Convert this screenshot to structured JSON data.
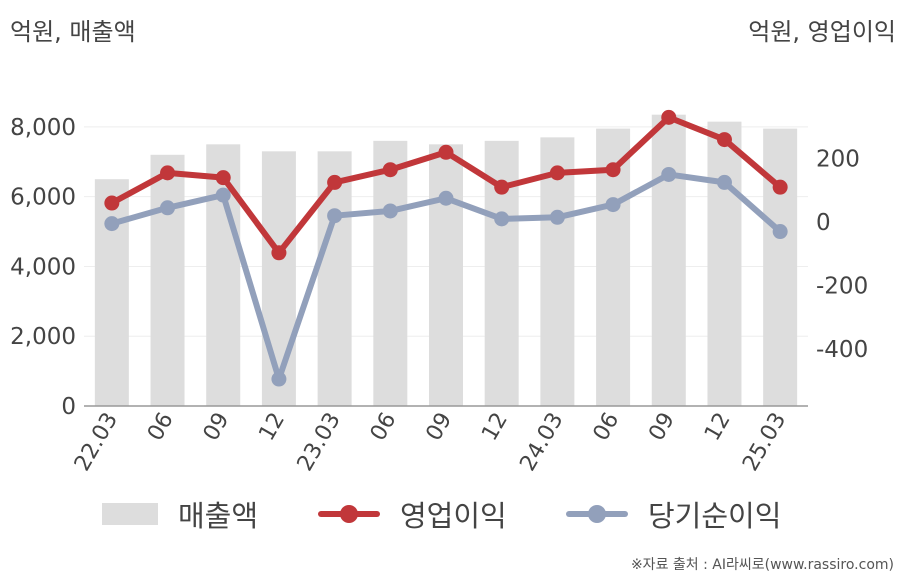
{
  "units": {
    "left": "억원, 매출액",
    "right": "억원, 영업이익"
  },
  "colors": {
    "bar": "#dddddd",
    "operating": "#c1373a",
    "net": "#92a0bb",
    "axis": "#999999",
    "grid": "#eeeeee"
  },
  "legend": {
    "revenue": "매출액",
    "operating": "영업이익",
    "net": "당기순이익"
  },
  "source": "※자료 출처 : AI라씨로(www.rassiro.com)",
  "chart_data": {
    "type": "bar+line",
    "categories": [
      "22.03",
      "06",
      "09",
      "12",
      "23.03",
      "06",
      "09",
      "12",
      "24.03",
      "06",
      "09",
      "12",
      "25.03"
    ],
    "left_axis": {
      "ylim": [
        0,
        9000
      ],
      "ticks": [
        0,
        2000,
        4000,
        6000,
        8000
      ],
      "tick_labels": [
        "0",
        "2,000",
        "4,000",
        "6,000",
        "8,000"
      ]
    },
    "right_axis": {
      "ylim": [
        -580,
        410
      ],
      "ticks": [
        -400,
        -200,
        0,
        200
      ],
      "tick_labels": [
        "-400",
        "-200",
        "0",
        "200"
      ]
    },
    "series": [
      {
        "name": "매출액",
        "type": "bar",
        "axis": "left",
        "values": [
          6500,
          7200,
          7500,
          7300,
          7300,
          7600,
          7500,
          7600,
          7700,
          7950,
          8350,
          8150,
          7950
        ]
      },
      {
        "name": "영업이익",
        "type": "line",
        "axis": "right",
        "values": [
          60,
          155,
          140,
          -97,
          125,
          165,
          220,
          110,
          155,
          165,
          330,
          260,
          110
        ]
      },
      {
        "name": "당기순이익",
        "type": "line",
        "axis": "right",
        "values": [
          -5,
          45,
          85,
          -495,
          20,
          35,
          75,
          10,
          15,
          55,
          150,
          125,
          -30
        ]
      }
    ]
  }
}
